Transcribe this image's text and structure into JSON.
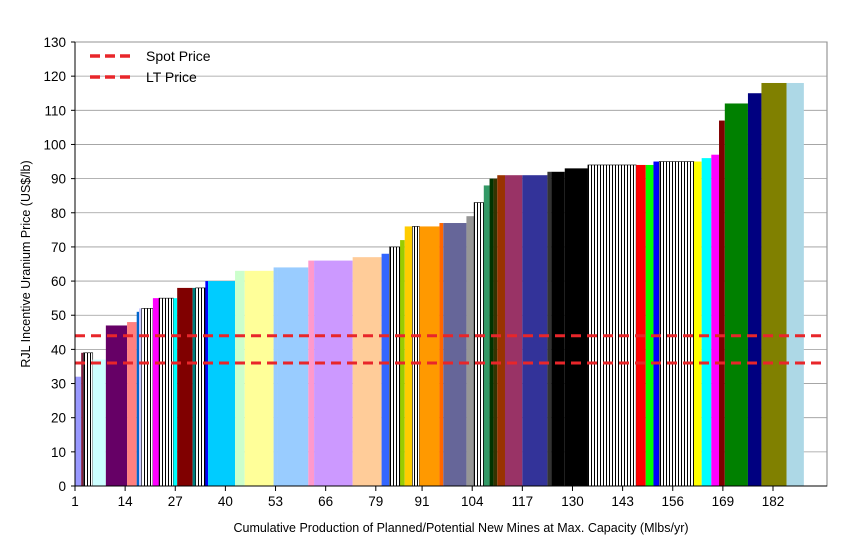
{
  "chart_data": {
    "type": "bar",
    "title": "",
    "xlabel": "Cumulative Production of Planned/Potential New Mines at Max. Capacity (Mlbs/yr)",
    "ylabel": "RJL Incentive Uranium Price (US$/lb)",
    "xlim": [
      1,
      196
    ],
    "ylim": [
      0,
      130
    ],
    "y_ticks": [
      0,
      10,
      20,
      30,
      40,
      50,
      60,
      70,
      80,
      90,
      100,
      110,
      120,
      130
    ],
    "x_tick_labels": [
      "1",
      "14",
      "27",
      "40",
      "53",
      "66",
      "79",
      "91",
      "104",
      "117",
      "130",
      "143",
      "156",
      "169",
      "182"
    ],
    "x_tick_values": [
      1,
      14,
      27,
      40,
      53,
      66,
      79,
      91,
      104,
      117,
      130,
      143,
      156,
      169,
      182
    ],
    "grid": "horizontal",
    "legend_position": "top-left",
    "legend": [
      {
        "label": "Spot Price",
        "color": "#e8262a"
      },
      {
        "label": "LT Price",
        "color": "#e8262a"
      }
    ],
    "reference_lines": [
      {
        "name": "Spot Price",
        "value": 44,
        "color": "#e8262a"
      },
      {
        "name": "LT Price",
        "value": 36,
        "color": "#e8262a"
      }
    ],
    "bars": [
      {
        "x0": 1.0,
        "x1": 2.6,
        "value": 32,
        "color": "#9999ff"
      },
      {
        "x0": 2.6,
        "x1": 3.2,
        "value": 39,
        "color": "#7f1f3f"
      },
      {
        "x0": 3.2,
        "x1": 5.6,
        "value": 39,
        "color": "#ffffff",
        "hatch": true
      },
      {
        "x0": 5.6,
        "x1": 9.0,
        "value": 37,
        "color": "#ccffff"
      },
      {
        "x0": 9.0,
        "x1": 14.5,
        "value": 47,
        "color": "#660066"
      },
      {
        "x0": 14.5,
        "x1": 17.0,
        "value": 48,
        "color": "#ff8080"
      },
      {
        "x0": 17.0,
        "x1": 17.6,
        "value": 51,
        "color": "#0066cc"
      },
      {
        "x0": 17.6,
        "x1": 18.3,
        "value": 52,
        "color": "#ccccff"
      },
      {
        "x0": 18.3,
        "x1": 21.2,
        "value": 52,
        "color": "#ffffff",
        "hatch": true
      },
      {
        "x0": 21.2,
        "x1": 22.8,
        "value": 55,
        "color": "#ff00ff"
      },
      {
        "x0": 22.8,
        "x1": 26.5,
        "value": 55,
        "color": "#ffff00",
        "hatch": true
      },
      {
        "x0": 26.5,
        "x1": 27.5,
        "value": 55,
        "color": "#00ffff"
      },
      {
        "x0": 27.5,
        "x1": 31.5,
        "value": 58,
        "color": "#800000"
      },
      {
        "x0": 31.5,
        "x1": 32.3,
        "value": 58,
        "color": "#008080"
      },
      {
        "x0": 32.3,
        "x1": 34.8,
        "value": 58,
        "color": "#ffffff",
        "hatch": true
      },
      {
        "x0": 34.8,
        "x1": 35.5,
        "value": 60,
        "color": "#0000ff"
      },
      {
        "x0": 35.5,
        "x1": 42.5,
        "value": 60,
        "color": "#00ccff"
      },
      {
        "x0": 42.5,
        "x1": 45.0,
        "value": 63,
        "color": "#ccffcc"
      },
      {
        "x0": 45.0,
        "x1": 52.5,
        "value": 63,
        "color": "#ffff99"
      },
      {
        "x0": 52.5,
        "x1": 53.5,
        "value": 64,
        "color": "#99ccff"
      },
      {
        "x0": 53.5,
        "x1": 61.5,
        "value": 64,
        "color": "#99ccff"
      },
      {
        "x0": 61.5,
        "x1": 63.0,
        "value": 66,
        "color": "#ff99cc"
      },
      {
        "x0": 63.0,
        "x1": 73.0,
        "value": 66,
        "color": "#cc99ff"
      },
      {
        "x0": 73.0,
        "x1": 80.5,
        "value": 67,
        "color": "#ffcc99"
      },
      {
        "x0": 80.5,
        "x1": 82.5,
        "value": 68,
        "color": "#3366ff"
      },
      {
        "x0": 82.5,
        "x1": 85.3,
        "value": 70,
        "color": "#33cccc",
        "hatch": true
      },
      {
        "x0": 85.3,
        "x1": 86.5,
        "value": 72,
        "color": "#99cc00"
      },
      {
        "x0": 86.5,
        "x1": 88.5,
        "value": 76,
        "color": "#ffcc00"
      },
      {
        "x0": 88.5,
        "x1": 90.3,
        "value": 76,
        "color": "#ffffff",
        "hatch": true
      },
      {
        "x0": 90.3,
        "x1": 95.5,
        "value": 76,
        "color": "#ff9900"
      },
      {
        "x0": 95.5,
        "x1": 96.5,
        "value": 77,
        "color": "#ff6600"
      },
      {
        "x0": 96.5,
        "x1": 102.5,
        "value": 77,
        "color": "#666699"
      },
      {
        "x0": 102.5,
        "x1": 104.5,
        "value": 79,
        "color": "#969696"
      },
      {
        "x0": 104.5,
        "x1": 107.0,
        "value": 83,
        "color": "#003366",
        "hatch": true
      },
      {
        "x0": 107.0,
        "x1": 108.5,
        "value": 88,
        "color": "#339966"
      },
      {
        "x0": 108.5,
        "x1": 109.5,
        "value": 90,
        "color": "#003300"
      },
      {
        "x0": 109.5,
        "x1": 110.5,
        "value": 90,
        "color": "#333300"
      },
      {
        "x0": 110.5,
        "x1": 112.5,
        "value": 91,
        "color": "#993300"
      },
      {
        "x0": 112.5,
        "x1": 117.0,
        "value": 91,
        "color": "#993366"
      },
      {
        "x0": 117.0,
        "x1": 123.5,
        "value": 91,
        "color": "#333399"
      },
      {
        "x0": 123.5,
        "x1": 124.5,
        "value": 92,
        "color": "#333333"
      },
      {
        "x0": 124.5,
        "x1": 128.0,
        "value": 92,
        "color": "#000000"
      },
      {
        "x0": 128.0,
        "x1": 134.0,
        "value": 93,
        "color": "#000000"
      },
      {
        "x0": 134.0,
        "x1": 146.5,
        "value": 94,
        "color": "#ffffff",
        "hatch": true
      },
      {
        "x0": 146.5,
        "x1": 149.0,
        "value": 94,
        "color": "#ff0000"
      },
      {
        "x0": 149.0,
        "x1": 151.0,
        "value": 94,
        "color": "#00ff00"
      },
      {
        "x0": 151.0,
        "x1": 152.5,
        "value": 95,
        "color": "#0000ff"
      },
      {
        "x0": 152.5,
        "x1": 161.5,
        "value": 95,
        "color": "#000080",
        "hatch": true
      },
      {
        "x0": 161.5,
        "x1": 163.5,
        "value": 95,
        "color": "#ffff00"
      },
      {
        "x0": 163.5,
        "x1": 166.0,
        "value": 96,
        "color": "#00ffff"
      },
      {
        "x0": 166.0,
        "x1": 168.0,
        "value": 97,
        "color": "#ff00ff"
      },
      {
        "x0": 168.0,
        "x1": 169.5,
        "value": 107,
        "color": "#800000"
      },
      {
        "x0": 169.5,
        "x1": 175.5,
        "value": 112,
        "color": "#008000"
      },
      {
        "x0": 175.5,
        "x1": 179.0,
        "value": 115,
        "color": "#000080"
      },
      {
        "x0": 179.0,
        "x1": 185.5,
        "value": 118,
        "color": "#808000"
      },
      {
        "x0": 185.5,
        "x1": 190.0,
        "value": 118,
        "color": "#add8e6"
      }
    ]
  }
}
